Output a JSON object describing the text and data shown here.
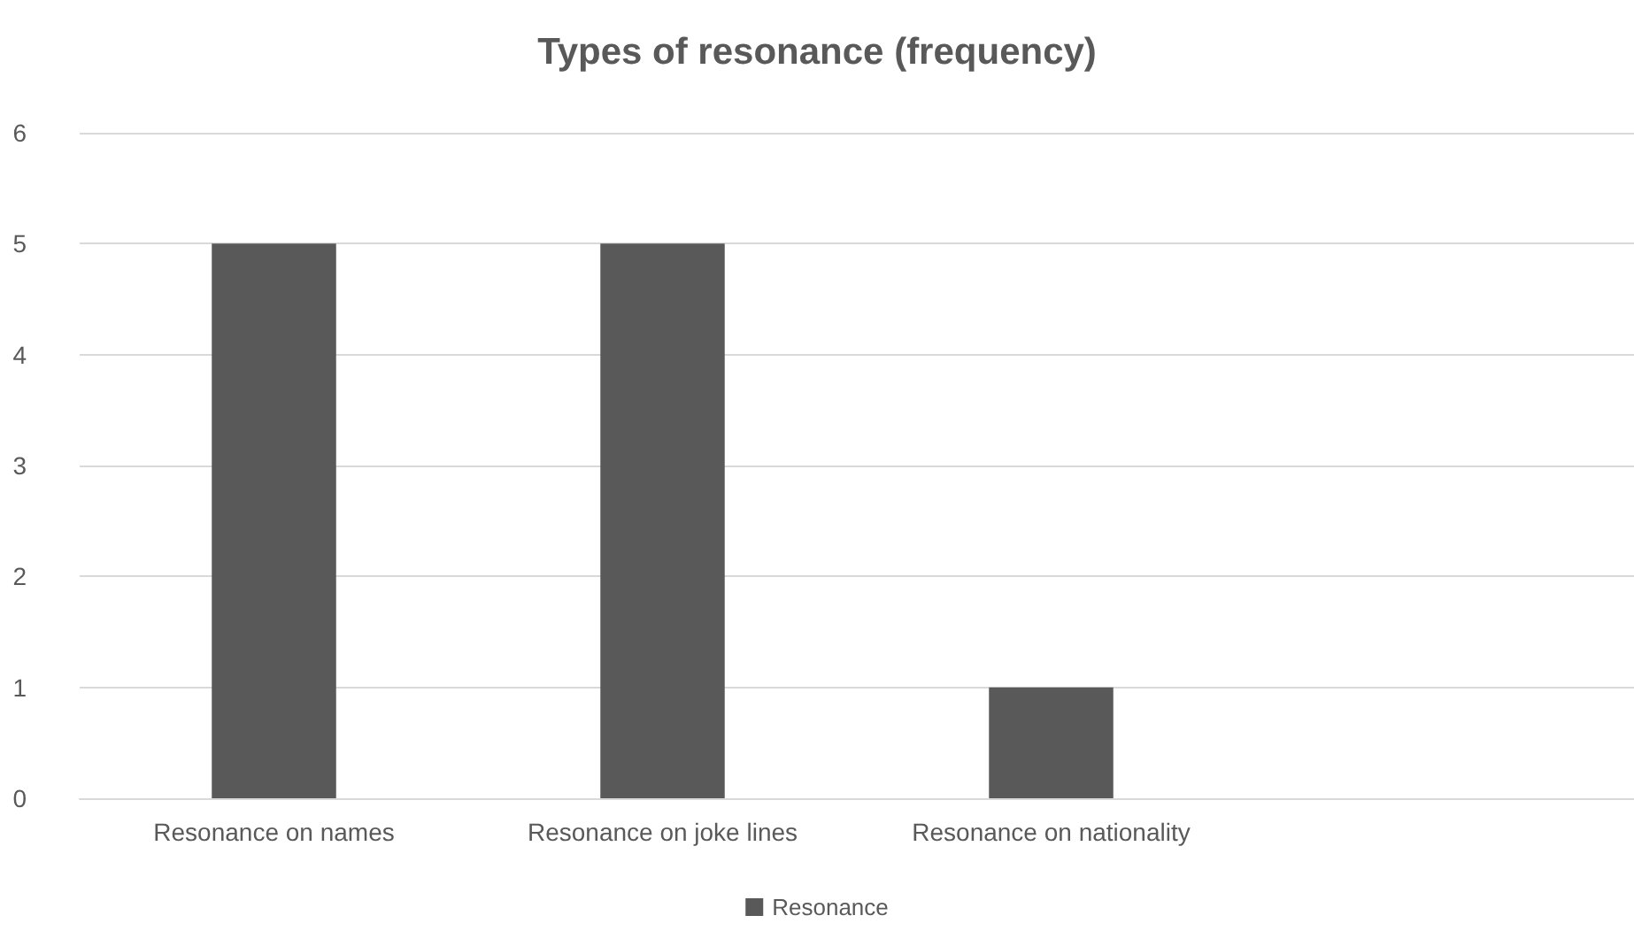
{
  "chart_data": {
    "type": "bar",
    "title": "Types of resonance (frequency)",
    "categories": [
      "Resonance on names",
      "Resonance on joke lines",
      "Resonance on nationality",
      null
    ],
    "series": [
      {
        "name": "Resonance",
        "color": "#595959",
        "values": [
          5,
          5,
          1,
          null
        ]
      }
    ],
    "ylim": [
      0,
      6
    ],
    "yticks": [
      0,
      1,
      2,
      3,
      4,
      5,
      6
    ],
    "grid": "y",
    "legend": "bottom"
  }
}
